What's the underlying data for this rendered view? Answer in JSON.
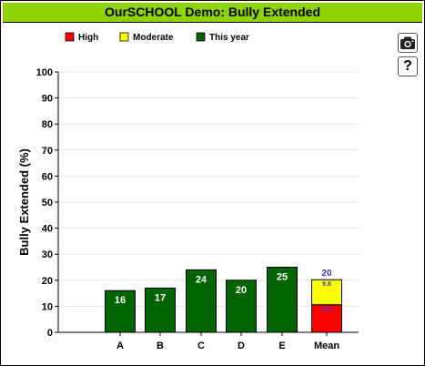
{
  "window": {
    "title": "OurSCHOOL  Demo: Bully Extended"
  },
  "toolbar": {
    "camera_icon": "camera-icon",
    "help_label": "?"
  },
  "chart_data": {
    "type": "bar",
    "title": "",
    "xlabel": "",
    "ylabel": "Bully Extended (%)",
    "ylim": [
      0,
      100
    ],
    "yticks": [
      0,
      10,
      20,
      30,
      40,
      50,
      60,
      70,
      80,
      90,
      100
    ],
    "grid": true,
    "legend_position": "top-left",
    "legend": [
      {
        "label": "High",
        "color": "#ff0000"
      },
      {
        "label": "Moderate",
        "color": "#ffff00"
      },
      {
        "label": "This year",
        "color": "#006400"
      }
    ],
    "categories": [
      "A",
      "B",
      "C",
      "D",
      "E",
      "Mean"
    ],
    "series": [
      {
        "name": "This year",
        "color": "#006400",
        "values": [
          16,
          17,
          24,
          20,
          25,
          null
        ],
        "labels": [
          "16",
          "17",
          "24",
          "20",
          "25",
          ""
        ]
      },
      {
        "name": "High",
        "color": "#ff0000",
        "values": [
          null,
          null,
          null,
          null,
          null,
          10.6
        ],
        "labels": [
          "",
          "",
          "",
          "",
          "",
          "10.6"
        ]
      },
      {
        "name": "Moderate",
        "color": "#ffff00",
        "values": [
          null,
          null,
          null,
          null,
          null,
          9.6
        ],
        "labels": [
          "",
          "",
          "",
          "",
          "",
          "9.6"
        ]
      }
    ],
    "total_labels": [
      "",
      "",
      "",
      "",
      "",
      "20"
    ]
  }
}
